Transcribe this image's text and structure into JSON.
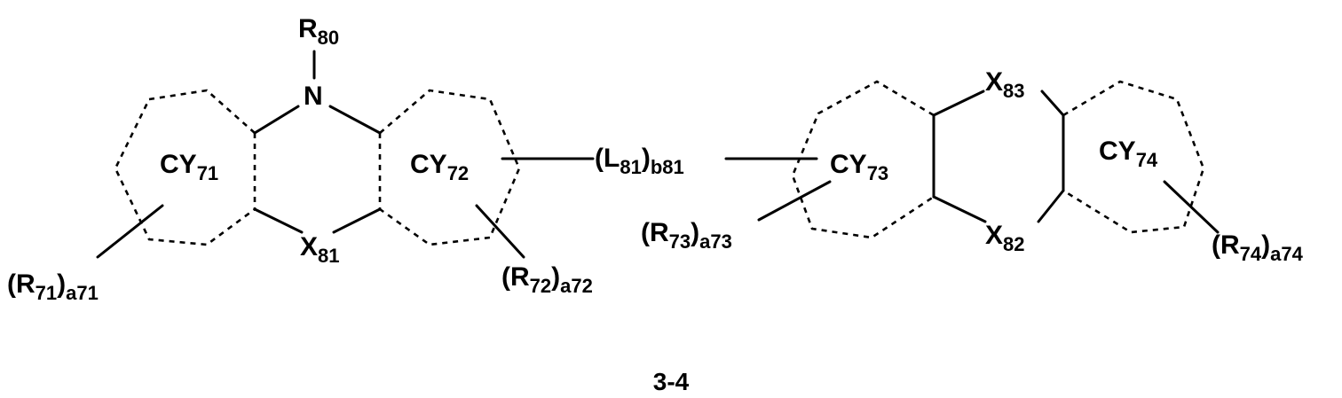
{
  "figure": {
    "label": "3-4",
    "color": "#000000"
  },
  "atoms": {
    "r80": {
      "main": "R",
      "sub": "80"
    },
    "n": {
      "main": "N"
    },
    "x81": {
      "main": "X",
      "sub": "81"
    },
    "x82": {
      "main": "X",
      "sub": "82"
    },
    "x83": {
      "main": "X",
      "sub": "83"
    }
  },
  "rings": {
    "cy71": {
      "main": "CY",
      "sub": "71"
    },
    "cy72": {
      "main": "CY",
      "sub": "72"
    },
    "cy73": {
      "main": "CY",
      "sub": "73"
    },
    "cy74": {
      "main": "CY",
      "sub": "74"
    }
  },
  "linker": {
    "open": "(L",
    "sub1": "81",
    "close": ")",
    "sub2": "b81"
  },
  "substituents": {
    "r71": {
      "open": "(R",
      "sub1": "71",
      "close": ")",
      "sub2": "a71"
    },
    "r72": {
      "open": "(R",
      "sub1": "72",
      "close": ")",
      "sub2": "a72"
    },
    "r73": {
      "open": "(R",
      "sub1": "73",
      "close": ")",
      "sub2": "a73"
    },
    "r74": {
      "open": "(R",
      "sub1": "74",
      "close": ")",
      "sub2": "a74"
    }
  }
}
